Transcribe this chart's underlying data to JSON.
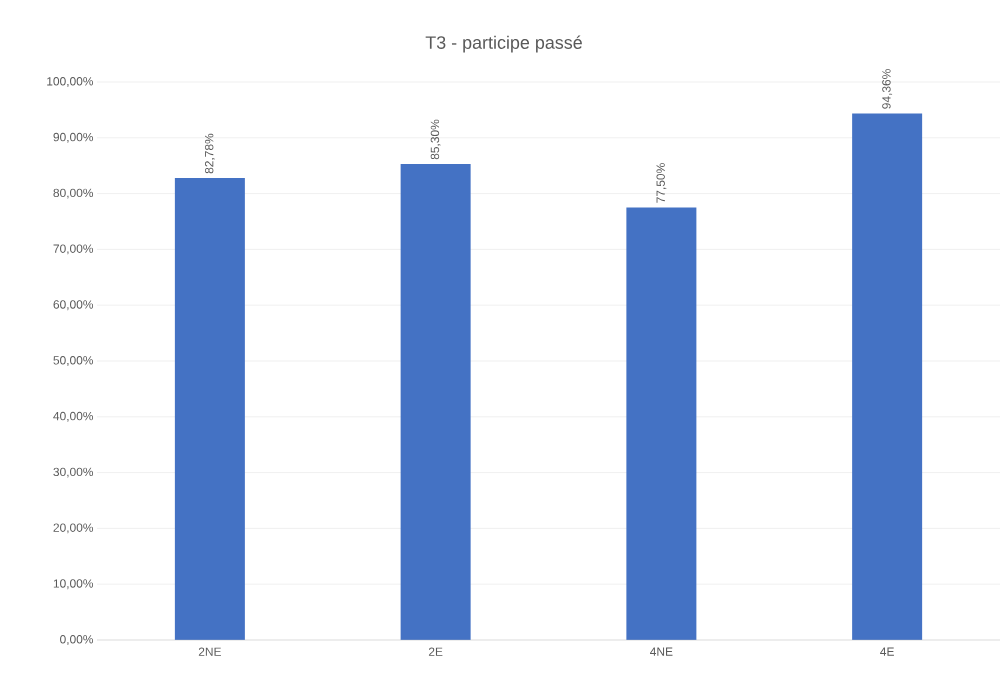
{
  "chart_data": {
    "type": "bar",
    "title": "T3 - participe passé",
    "categories": [
      "2NE",
      "2E",
      "4NE",
      "4E"
    ],
    "values": [
      82.78,
      85.3,
      77.5,
      94.36
    ],
    "value_labels": [
      "82,78%",
      "85,30%",
      "77,50%",
      "94,36%"
    ],
    "color": "#4472c4",
    "ylim": [
      0,
      100
    ],
    "yticks": [
      {
        "value": 0,
        "label": "0,00%"
      },
      {
        "value": 10,
        "label": "10,00%"
      },
      {
        "value": 20,
        "label": "20,00%"
      },
      {
        "value": 30,
        "label": "30,00%"
      },
      {
        "value": 40,
        "label": "40,00%"
      },
      {
        "value": 50,
        "label": "50,00%"
      },
      {
        "value": 60,
        "label": "60,00%"
      },
      {
        "value": 70,
        "label": "70,00%"
      },
      {
        "value": 80,
        "label": "80,00%"
      },
      {
        "value": 90,
        "label": "90,00%"
      },
      {
        "value": 100,
        "label": "100,00%"
      }
    ],
    "grid": "y"
  }
}
